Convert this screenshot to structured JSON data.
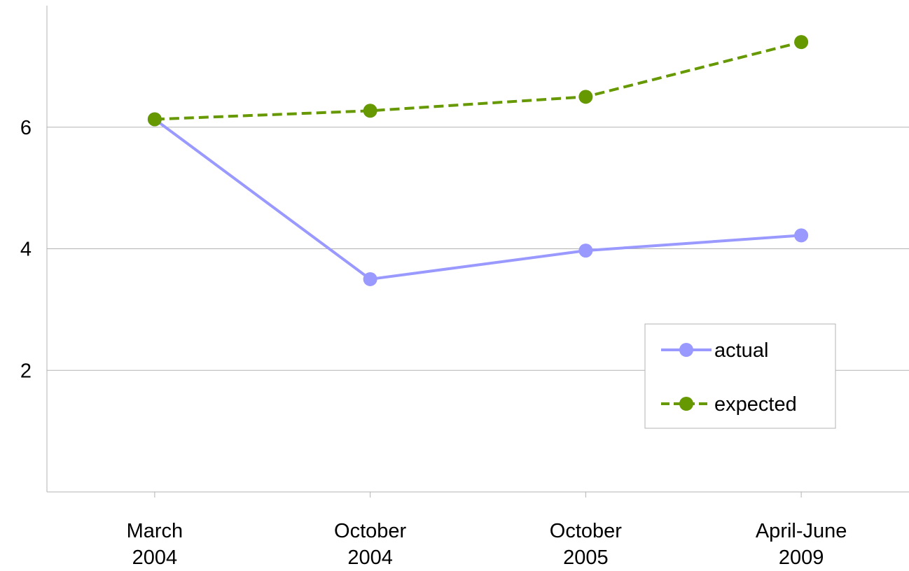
{
  "chart_data": {
    "type": "line",
    "categories": [
      [
        "March",
        "2004"
      ],
      [
        "October",
        "2004"
      ],
      [
        "October",
        "2005"
      ],
      [
        "April-June",
        "2009"
      ]
    ],
    "series": [
      {
        "name": "actual",
        "values": [
          6.13,
          3.5,
          3.97,
          4.22
        ],
        "color": "#9999ff",
        "dash": "solid"
      },
      {
        "name": "expected",
        "values": [
          6.13,
          6.27,
          6.5,
          7.4
        ],
        "color": "#669900",
        "dash": "dashed"
      }
    ],
    "ylim": [
      0,
      8
    ],
    "yticks": [
      "2",
      "4",
      "6"
    ],
    "grid": true,
    "legend_position": "lower-right"
  }
}
